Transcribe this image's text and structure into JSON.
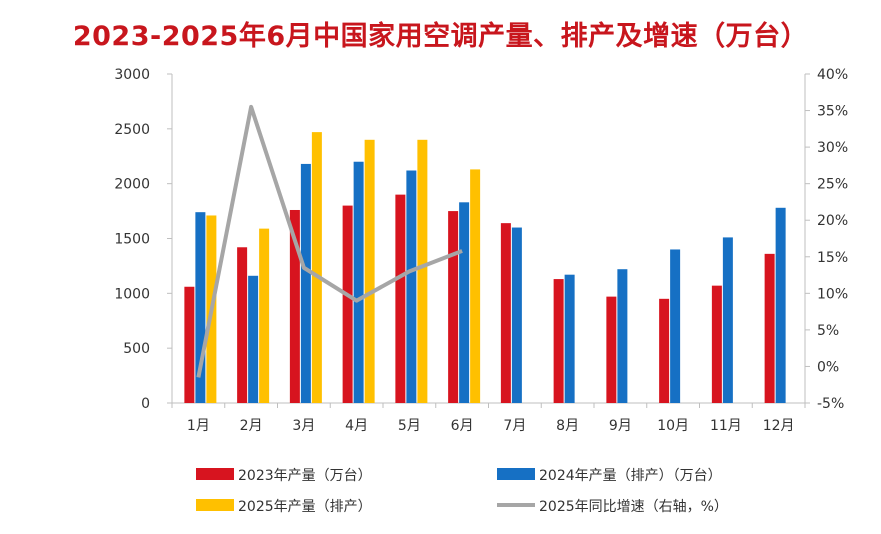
{
  "chart_data": {
    "type": "bar",
    "title": "2023-2025年6月中国家用空调产量、排产及增速（万台）",
    "categories": [
      "1月",
      "2月",
      "3月",
      "4月",
      "5月",
      "6月",
      "7月",
      "8月",
      "9月",
      "10月",
      "11月",
      "12月"
    ],
    "series": [
      {
        "name": "2023年产量（万台）",
        "type": "bar",
        "axis": "left",
        "color": "#d7141f",
        "values": [
          1060,
          1420,
          1760,
          1800,
          1900,
          1750,
          1640,
          1130,
          970,
          950,
          1070,
          1360
        ]
      },
      {
        "name": "2024年产量（排产）（万台）",
        "type": "bar",
        "axis": "left",
        "color": "#1670c4",
        "values": [
          1740,
          1160,
          2180,
          2200,
          2120,
          1830,
          1600,
          1170,
          1220,
          1400,
          1510,
          1780
        ]
      },
      {
        "name": "2025年产量（排产）",
        "type": "bar",
        "axis": "left",
        "color": "#ffc000",
        "values": [
          1710,
          1590,
          2470,
          2400,
          2400,
          2130,
          null,
          null,
          null,
          null,
          null,
          null
        ]
      },
      {
        "name": "2025年同比增速（右轴，%）",
        "type": "line",
        "axis": "right",
        "color": "#a6a6a6",
        "values": [
          -1.5,
          35.5,
          13.5,
          9.0,
          13.0,
          15.8,
          null,
          null,
          null,
          null,
          null,
          null
        ]
      }
    ],
    "y_left": {
      "min": 0,
      "max": 3000,
      "step": 500,
      "ticks": [
        "0",
        "500",
        "1000",
        "1500",
        "2000",
        "2500",
        "3000"
      ]
    },
    "y_right": {
      "min": -5,
      "max": 40,
      "step": 5,
      "ticks": [
        "-5%",
        "0%",
        "5%",
        "10%",
        "15%",
        "20%",
        "25%",
        "30%",
        "35%",
        "40%"
      ]
    },
    "legend_position": "bottom",
    "grid": false
  }
}
